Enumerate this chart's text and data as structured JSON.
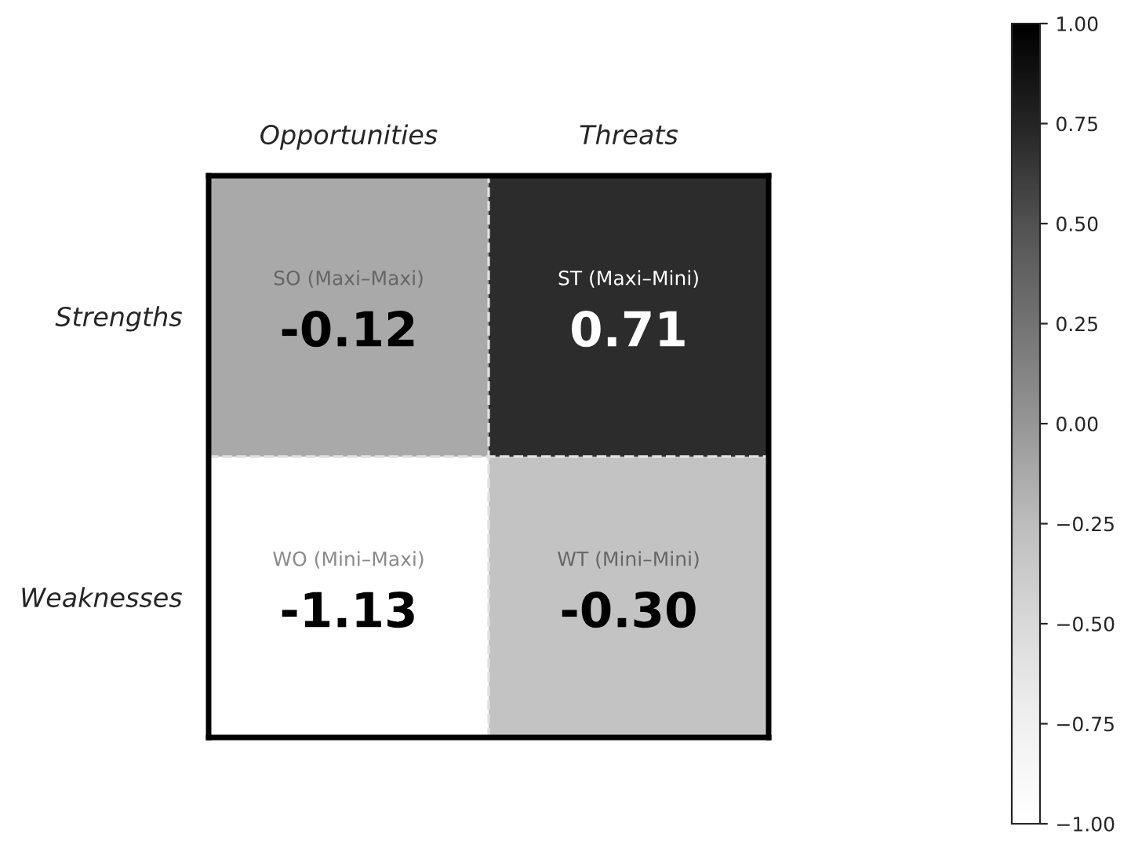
{
  "chart_data": {
    "type": "heatmap",
    "categories": [
      "Opportunities",
      "Threats"
    ],
    "y_categories": [
      "Strengths",
      "Weaknesses"
    ],
    "cells": [
      [
        -0.12,
        0.71
      ],
      [
        -1.13,
        -0.3
      ]
    ],
    "cell_labels": [
      [
        "SO (Maxi–Maxi)",
        "ST (Maxi–Mini)"
      ],
      [
        "WO (Mini–Maxi)",
        "WT (Mini–Mini)"
      ]
    ],
    "value_labels": [
      [
        "-0.12",
        "0.71"
      ],
      [
        "-1.13",
        "-0.30"
      ]
    ],
    "clim": [
      -1.0,
      1.0
    ],
    "cticks": [
      {
        "value": -1.0,
        "label": "−1.00"
      },
      {
        "value": -0.75,
        "label": "−0.75"
      },
      {
        "value": -0.5,
        "label": "−0.50"
      },
      {
        "value": -0.25,
        "label": "−0.25"
      },
      {
        "value": 0.0,
        "label": "0.00"
      },
      {
        "value": 0.25,
        "label": "0.25"
      },
      {
        "value": 0.5,
        "label": "0.50"
      },
      {
        "value": 0.75,
        "label": "0.75"
      },
      {
        "value": 1.0,
        "label": "1.00"
      }
    ]
  }
}
